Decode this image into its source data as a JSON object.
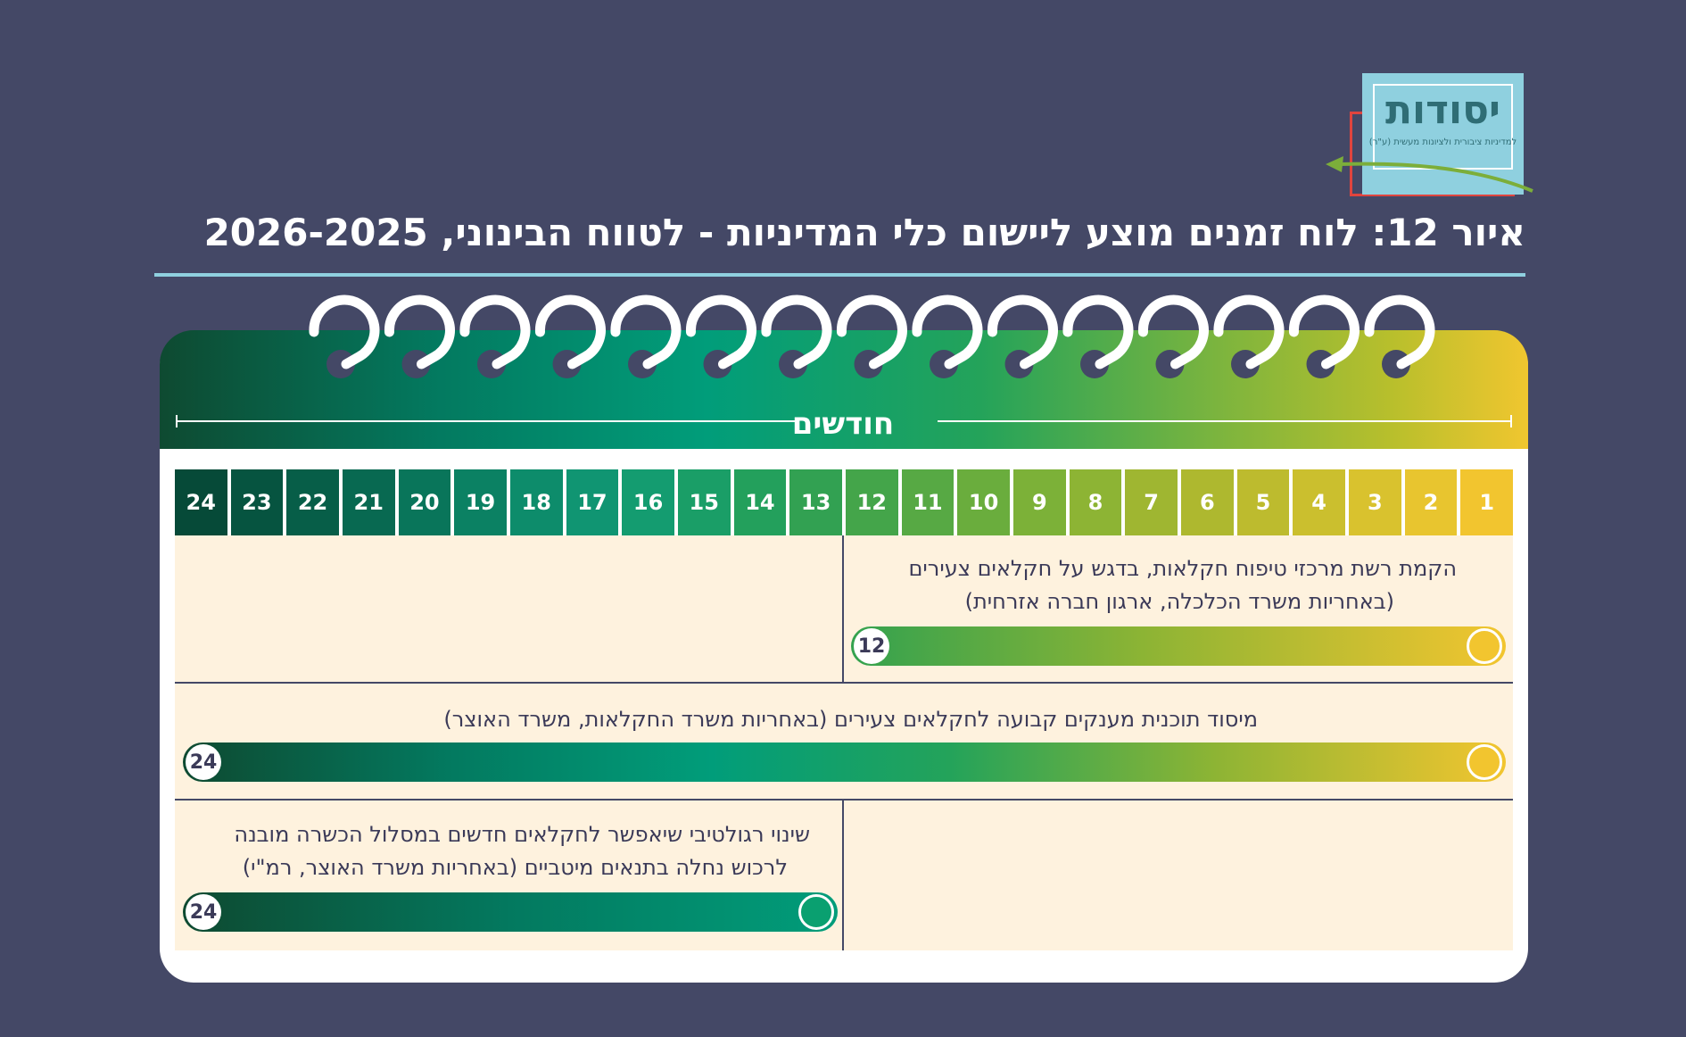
{
  "logo": {
    "word": "יסודות",
    "tagline": "למדיניות ציבורית ולציונות מעשית (ע\"ר)"
  },
  "title": "איור 12: לוח זמנים מוצע ליישום כלי המדיניות - לטווח הבינוני, 2026-2025",
  "calendar": {
    "months_label": "חודשים",
    "months": [
      "1",
      "2",
      "3",
      "4",
      "5",
      "6",
      "7",
      "8",
      "9",
      "10",
      "11",
      "12",
      "13",
      "14",
      "15",
      "16",
      "17",
      "18",
      "19",
      "20",
      "21",
      "22",
      "23",
      "24"
    ],
    "month_colors": [
      "#f2c52f",
      "#e8c52f",
      "#d9c22e",
      "#cbbf2e",
      "#bdbb2e",
      "#aeb82f",
      "#9fb631",
      "#8db434",
      "#7cb138",
      "#6aad3d",
      "#57a944",
      "#44a54a",
      "#32a152",
      "#23a05c",
      "#1a9e67",
      "#149c70",
      "#109572",
      "#0d8c6b",
      "#0b8163",
      "#09755a",
      "#086951",
      "#075e48",
      "#065440",
      "#064a38"
    ],
    "tasks": [
      {
        "lines": [
          "הקמת רשת מרכזי טיפוח חקלאות, בדגש על חקלאים צעירים",
          "(באחריות משרד הכלכלה, ארגון חברה אזרחית)"
        ],
        "duration": "12"
      },
      {
        "lines": [
          "מיסוד תוכנית מענקים קבועה לחקלאים צעירים (באחריות משרד החקלאות, משרד האוצר)"
        ],
        "duration": "24"
      },
      {
        "lines": [
          "שינוי רגולטיבי שיאפשר לחקלאים חדשים במסלול הכשרה מובנה",
          "לרכוש נחלה בתנאים מיטביים (באחריות משרד האוצר, רמ\"י)"
        ],
        "duration": "24"
      }
    ],
    "colors": {
      "background": "#444866",
      "accent_line": "#8fd0df",
      "task_area": "#fef2de",
      "yellow": "#f2c52f",
      "dark_green": "#0e4a31"
    }
  }
}
